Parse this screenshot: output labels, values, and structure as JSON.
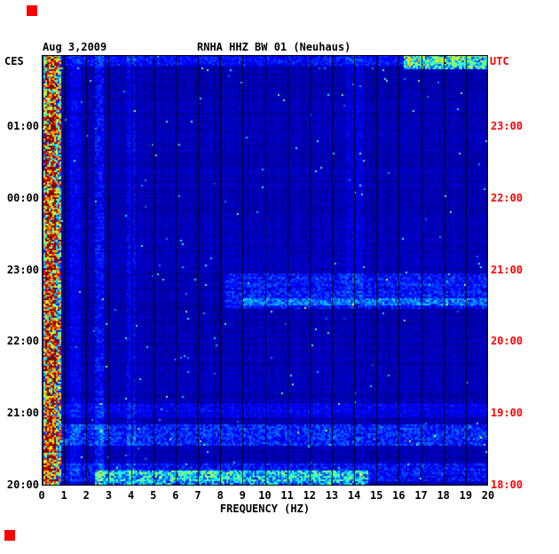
{
  "header": {
    "date": "Aug 3,2009",
    "title": "RNHA HHZ BW 01 (Neuhaus)"
  },
  "axes": {
    "left_label": "CES",
    "right_label": "UTC",
    "x_label": "FREQUENCY (HZ)"
  },
  "colors": {
    "background": "#ffffff",
    "text": "#000000",
    "utc": "#ff0000",
    "marker": "#ff0000",
    "grid": "#000000",
    "plot_base": "#000090"
  },
  "chart_data": {
    "type": "heatmap",
    "title": "RNHA HHZ BW 01 (Neuhaus)",
    "date": "Aug 3,2009",
    "colormap": "jet",
    "background_value": 0.05,
    "x": {
      "label": "FREQUENCY (HZ)",
      "min": 0,
      "max": 20,
      "tick_step": 1,
      "tick_labels": [
        "0",
        "1",
        "2",
        "3",
        "4",
        "5",
        "6",
        "7",
        "8",
        "9",
        "10",
        "11",
        "12",
        "13",
        "14",
        "15",
        "16",
        "17",
        "18",
        "19",
        "20"
      ]
    },
    "y": {
      "left_label": "CES",
      "right_label": "UTC",
      "top_utc": 24,
      "bottom_utc": 18,
      "ticks": [
        {
          "utc_hour": 23,
          "utc": "23:00",
          "local": "01:00"
        },
        {
          "utc_hour": 22,
          "utc": "22:00",
          "local": "00:00"
        },
        {
          "utc_hour": 21,
          "utc": "21:00",
          "local": "23:00"
        },
        {
          "utc_hour": 20,
          "utc": "20:00",
          "local": "22:00"
        },
        {
          "utc_hour": 19,
          "utc": "19:00",
          "local": "21:00"
        },
        {
          "utc_hour": 18,
          "utc": "18:00",
          "local": "20:00"
        }
      ]
    },
    "features": [
      {
        "name": "oceanic-microseism-band",
        "f": [
          0.05,
          0.9
        ],
        "utc": [
          18,
          24
        ],
        "value": 0.5,
        "jitter": 0.9
      },
      {
        "name": "microseism-core",
        "f": [
          0.15,
          0.6
        ],
        "utc": [
          18,
          24
        ],
        "value": 0.3,
        "jitter": 0.7
      },
      {
        "name": "stripe-1.5hz",
        "f": [
          1.3,
          1.75
        ],
        "utc": [
          18,
          24
        ],
        "value": 0.045,
        "jitter": 0.9
      },
      {
        "name": "stripe-2.5hz",
        "f": [
          2.35,
          2.8
        ],
        "utc": [
          18,
          24
        ],
        "value": 0.07,
        "jitter": 0.9
      },
      {
        "name": "stripe-4hz",
        "f": [
          3.85,
          4.2
        ],
        "utc": [
          18,
          24
        ],
        "value": 0.05,
        "jitter": 0.9
      },
      {
        "name": "stripe-14hz-upper",
        "f": [
          13.6,
          14.4
        ],
        "utc": [
          20.6,
          24
        ],
        "value": 0.035,
        "jitter": 0.9
      },
      {
        "name": "band-2030utc-high-freq",
        "f": [
          8.2,
          20
        ],
        "utc": [
          20.45,
          20.95
        ],
        "value": 0.09,
        "jitter": 0.85
      },
      {
        "name": "line-2035utc",
        "f": [
          9,
          20
        ],
        "utc": [
          20.52,
          20.62
        ],
        "value": 0.1,
        "jitter": 0.8
      },
      {
        "name": "band-1905utc-broadband",
        "f": [
          0.9,
          20
        ],
        "utc": [
          18.95,
          19.15
        ],
        "value": 0.05,
        "jitter": 0.9
      },
      {
        "name": "band-1840utc-broadband",
        "f": [
          0.9,
          20
        ],
        "utc": [
          18.55,
          18.85
        ],
        "value": 0.1,
        "jitter": 0.85
      },
      {
        "name": "band-1810utc-broadband",
        "f": [
          0.9,
          20
        ],
        "utc": [
          18.05,
          18.3
        ],
        "value": 0.08,
        "jitter": 0.9
      },
      {
        "name": "bottom-speckle-band",
        "f": [
          2.4,
          14.6
        ],
        "utc": [
          18.0,
          18.2
        ],
        "value": 0.22,
        "jitter": 0.9
      },
      {
        "name": "top-row-speckle",
        "f": [
          1,
          20
        ],
        "utc": [
          23.85,
          24
        ],
        "value": 0.07,
        "jitter": 0.9
      },
      {
        "name": "top-right-bright-patch",
        "f": [
          16.2,
          20
        ],
        "utc": [
          23.8,
          24
        ],
        "value": 0.3,
        "jitter": 0.8
      }
    ]
  }
}
